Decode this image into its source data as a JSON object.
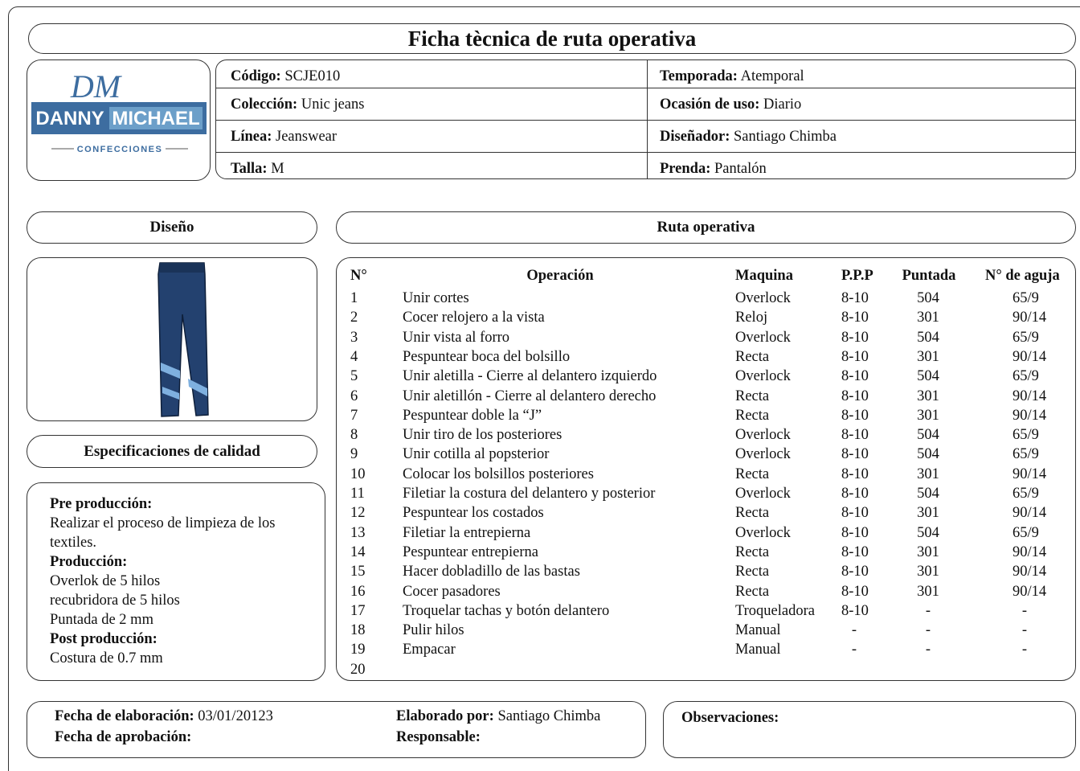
{
  "title": "Ficha tècnica de ruta operativa",
  "logo": {
    "monogram": "DM",
    "brand_first": "DANNY",
    "brand_second": "MICHAEL",
    "tagline": "CONFECCIONES"
  },
  "header": {
    "fields": [
      {
        "label": "Código:",
        "value": "SCJE010"
      },
      {
        "label": "Temporada:",
        "value": "Atemporal"
      },
      {
        "label": "Colección:",
        "value": "Unic jeans"
      },
      {
        "label": "Ocasión de uso:",
        "value": "Diario"
      },
      {
        "label": "Línea:",
        "value": "Jeanswear"
      },
      {
        "label": "Diseñador:",
        "value": "Santiago Chimba"
      },
      {
        "label": "Talla:",
        "value": "M"
      },
      {
        "label": "Prenda:",
        "value": "Pantalón"
      }
    ]
  },
  "design": {
    "title": "Diseño"
  },
  "quality": {
    "title": "Especificaciones de calidad",
    "sections": [
      {
        "heading": "Pre producción:",
        "lines": [
          "Realizar el proceso de limpieza de los textiles."
        ]
      },
      {
        "heading": "Producción:",
        "lines": [
          "Overlok de 5 hilos",
          "recubridora de 5 hilos",
          "Puntada de 2 mm"
        ]
      },
      {
        "heading": "Post producción:",
        "lines": [
          "Costura de 0.7 mm"
        ]
      }
    ]
  },
  "route": {
    "title": "Ruta operativa",
    "columns": [
      "N°",
      "Operación",
      "Maquina",
      "P.P.P",
      "Puntada",
      "N° de aguja"
    ],
    "rows": [
      [
        "1",
        "Unir cortes",
        "Overlock",
        "8-10",
        "504",
        "65/9"
      ],
      [
        "2",
        "Cocer relojero a la vista",
        "Reloj",
        "8-10",
        "301",
        "90/14"
      ],
      [
        "3",
        "Unir vista al forro",
        "Overlock",
        "8-10",
        "504",
        "65/9"
      ],
      [
        "4",
        "Pespuntear boca del bolsillo",
        "Recta",
        "8-10",
        "301",
        "90/14"
      ],
      [
        "5",
        "Unir aletilla - Cierre al delantero izquierdo",
        "Overlock",
        "8-10",
        "504",
        "65/9"
      ],
      [
        "6",
        "Unir aletillón - Cierre al delantero derecho",
        "Recta",
        "8-10",
        "301",
        "90/14"
      ],
      [
        "7",
        "Pespuntear doble la “J”",
        "Recta",
        "8-10",
        "301",
        "90/14"
      ],
      [
        "8",
        "Unir tiro de los posteriores",
        "Overlock",
        "8-10",
        "504",
        "65/9"
      ],
      [
        "9",
        "Unir cotilla al popsterior",
        "Overlock",
        "8-10",
        "504",
        "65/9"
      ],
      [
        "10",
        "Colocar los bolsillos posteriores",
        "Recta",
        "8-10",
        "301",
        "90/14"
      ],
      [
        "11",
        "Filetiar la costura del delantero y posterior",
        "Overlock",
        "8-10",
        "504",
        "65/9"
      ],
      [
        "12",
        "Pespuntear los costados",
        "Recta",
        "8-10",
        "301",
        "90/14"
      ],
      [
        "13",
        "Filetiar la entrepierna",
        "Overlock",
        "8-10",
        "504",
        "65/9"
      ],
      [
        "14",
        "Pespuntear entrepierna",
        "Recta",
        "8-10",
        "301",
        "90/14"
      ],
      [
        "15",
        "Hacer dobladillo de las bastas",
        "Recta",
        "8-10",
        "301",
        "90/14"
      ],
      [
        "16",
        "Cocer pasadores",
        "Recta",
        "8-10",
        "301",
        "90/14"
      ],
      [
        "17",
        "Troquelar tachas y botón delantero",
        "Troqueladora",
        "8-10",
        "-",
        "-"
      ],
      [
        "18",
        "Pulir hilos",
        "Manual",
        "-",
        "-",
        "-"
      ],
      [
        "19",
        "Empacar",
        "Manual",
        "-",
        "-",
        "-"
      ],
      [
        "20"
      ]
    ]
  },
  "footer": {
    "fields": [
      {
        "label": "Fecha de elaboración:",
        "value": "03/01/20123"
      },
      {
        "label": "Fecha de aprobación:"
      },
      {
        "label": "Elaborado por:",
        "value": "Santiago Chimba"
      },
      {
        "label": "Responsable:"
      }
    ],
    "observations": "Observaciones:"
  }
}
